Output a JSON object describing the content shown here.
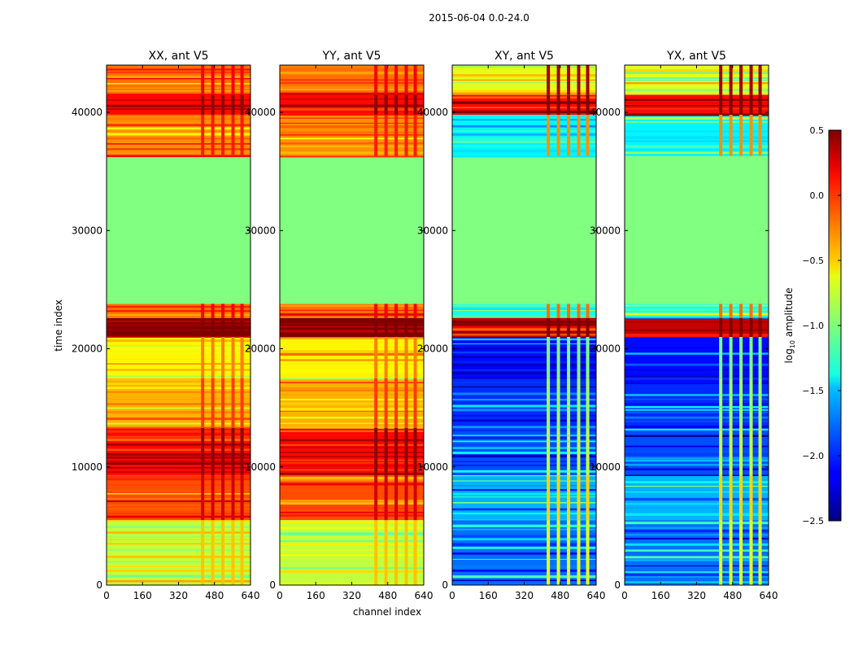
{
  "figure": {
    "suptitle": "2015-06-04 0.0-24.0",
    "xlabel": "channel index",
    "ylabel": "time index"
  },
  "chart_data": {
    "type": "heatmap",
    "x_ticks": [
      0,
      160,
      320,
      480,
      640
    ],
    "y_ticks": [
      0,
      10000,
      20000,
      30000,
      40000
    ],
    "xlim": [
      0,
      640
    ],
    "ylim": [
      0,
      44000
    ],
    "panels": [
      {
        "title": "XX, ant V5",
        "kind": "parallel"
      },
      {
        "title": "YY, ant V5",
        "kind": "parallel"
      },
      {
        "title": "XY, ant V5",
        "kind": "cross"
      },
      {
        "title": "YX, ant V5",
        "kind": "cross"
      }
    ],
    "bands": [
      {
        "from": 0,
        "to": 5500,
        "parallel": -0.8,
        "cross": -1.8
      },
      {
        "from": 5500,
        "to": 9300,
        "parallel": -0.1,
        "cross": -1.6
      },
      {
        "from": 9300,
        "to": 13300,
        "parallel": 0.1,
        "cross": -1.9
      },
      {
        "from": 13300,
        "to": 17500,
        "parallel": -0.4,
        "cross": -2.0
      },
      {
        "from": 17500,
        "to": 21000,
        "parallel": -0.6,
        "cross": -2.1
      },
      {
        "from": 21000,
        "to": 22600,
        "parallel": 0.5,
        "cross": 0.3
      },
      {
        "from": 22600,
        "to": 23800,
        "parallel": -0.2,
        "cross": -1.3
      },
      {
        "from": 23800,
        "to": 36300,
        "parallel": -1.0,
        "cross": -1.0
      },
      {
        "from": 36300,
        "to": 39800,
        "parallel": -0.3,
        "cross": -1.4
      },
      {
        "from": 39800,
        "to": 41500,
        "parallel": 0.1,
        "cross": 0.1
      },
      {
        "from": 41500,
        "to": 44000,
        "parallel": -0.2,
        "cross": -0.7
      }
    ],
    "rfi_channel_range": [
      410,
      600
    ],
    "colorbar": {
      "label": "log10 amplitude",
      "label_prefix": "log",
      "label_sub": "10",
      "label_suffix": " amplitude",
      "min": -2.5,
      "max": 0.5,
      "ticks": [
        "0.5",
        "0.0",
        "−0.5",
        "−1.0",
        "−1.5",
        "−2.0",
        "−2.5"
      ],
      "tick_values": [
        0.5,
        0.0,
        -0.5,
        -1.0,
        -1.5,
        -2.0,
        -2.5
      ]
    }
  }
}
